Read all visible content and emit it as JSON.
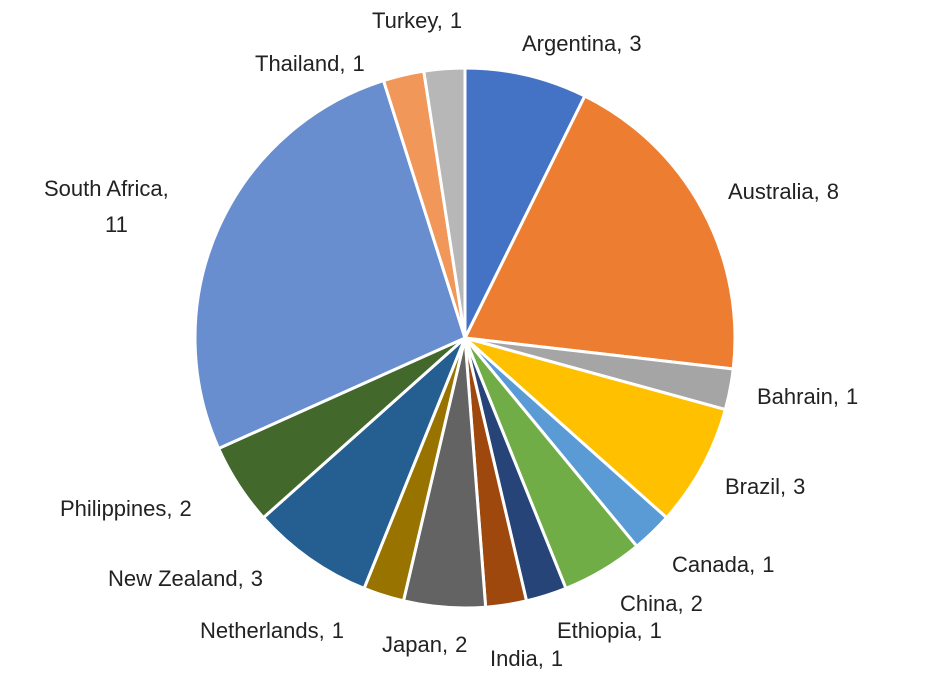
{
  "chart_data": {
    "type": "pie",
    "categories": [
      "Argentina",
      "Australia",
      "Bahrain",
      "Brazil",
      "Canada",
      "China",
      "Ethiopia",
      "India",
      "Japan",
      "Netherlands",
      "New Zealand",
      "Philippines",
      "South Africa",
      "Thailand",
      "Turkey"
    ],
    "values": [
      3,
      8,
      1,
      3,
      1,
      2,
      1,
      1,
      2,
      1,
      3,
      2,
      11,
      1,
      1
    ],
    "colors": [
      "#4472c4",
      "#ed7d31",
      "#a5a5a5",
      "#ffc000",
      "#5b9bd5",
      "#70ad47",
      "#264478",
      "#9e480e",
      "#636363",
      "#997300",
      "#255e91",
      "#43682b",
      "#698ed0",
      "#f1975a",
      "#b7b7b7"
    ],
    "label_separator": ","
  }
}
